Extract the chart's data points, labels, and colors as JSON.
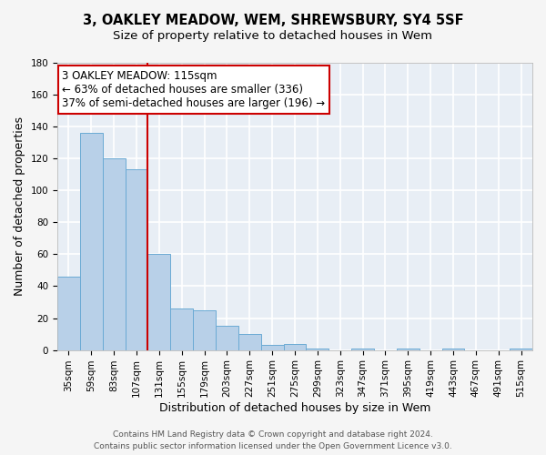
{
  "title": "3, OAKLEY MEADOW, WEM, SHREWSBURY, SY4 5SF",
  "subtitle": "Size of property relative to detached houses in Wem",
  "xlabel": "Distribution of detached houses by size in Wem",
  "ylabel": "Number of detached properties",
  "footer_line1": "Contains HM Land Registry data © Crown copyright and database right 2024.",
  "footer_line2": "Contains public sector information licensed under the Open Government Licence v3.0.",
  "categories": [
    "35sqm",
    "59sqm",
    "83sqm",
    "107sqm",
    "131sqm",
    "155sqm",
    "179sqm",
    "203sqm",
    "227sqm",
    "251sqm",
    "275sqm",
    "299sqm",
    "323sqm",
    "347sqm",
    "371sqm",
    "395sqm",
    "419sqm",
    "443sqm",
    "467sqm",
    "491sqm",
    "515sqm"
  ],
  "values": [
    46,
    136,
    120,
    113,
    60,
    26,
    25,
    15,
    10,
    3,
    4,
    1,
    0,
    1,
    0,
    1,
    0,
    1,
    0,
    0,
    1
  ],
  "bar_color": "#b8d0e8",
  "bar_edge_color": "#6aaad4",
  "bar_edge_width": 0.7,
  "ylim": [
    0,
    180
  ],
  "yticks": [
    0,
    20,
    40,
    60,
    80,
    100,
    120,
    140,
    160,
    180
  ],
  "property_line_x": 3.5,
  "property_line_color": "#cc0000",
  "annotation_text_line1": "3 OAKLEY MEADOW: 115sqm",
  "annotation_text_line2": "← 63% of detached houses are smaller (336)",
  "annotation_text_line3": "37% of semi-detached houses are larger (196) →",
  "annotation_box_color": "#ffffff",
  "annotation_box_edge": "#cc0000",
  "fig_bg_color": "#f5f5f5",
  "plot_bg_color": "#e8eef5",
  "grid_color": "#ffffff",
  "title_fontsize": 10.5,
  "subtitle_fontsize": 9.5,
  "annotation_fontsize": 8.5,
  "axis_label_fontsize": 9,
  "tick_fontsize": 7.5,
  "footer_fontsize": 6.5
}
